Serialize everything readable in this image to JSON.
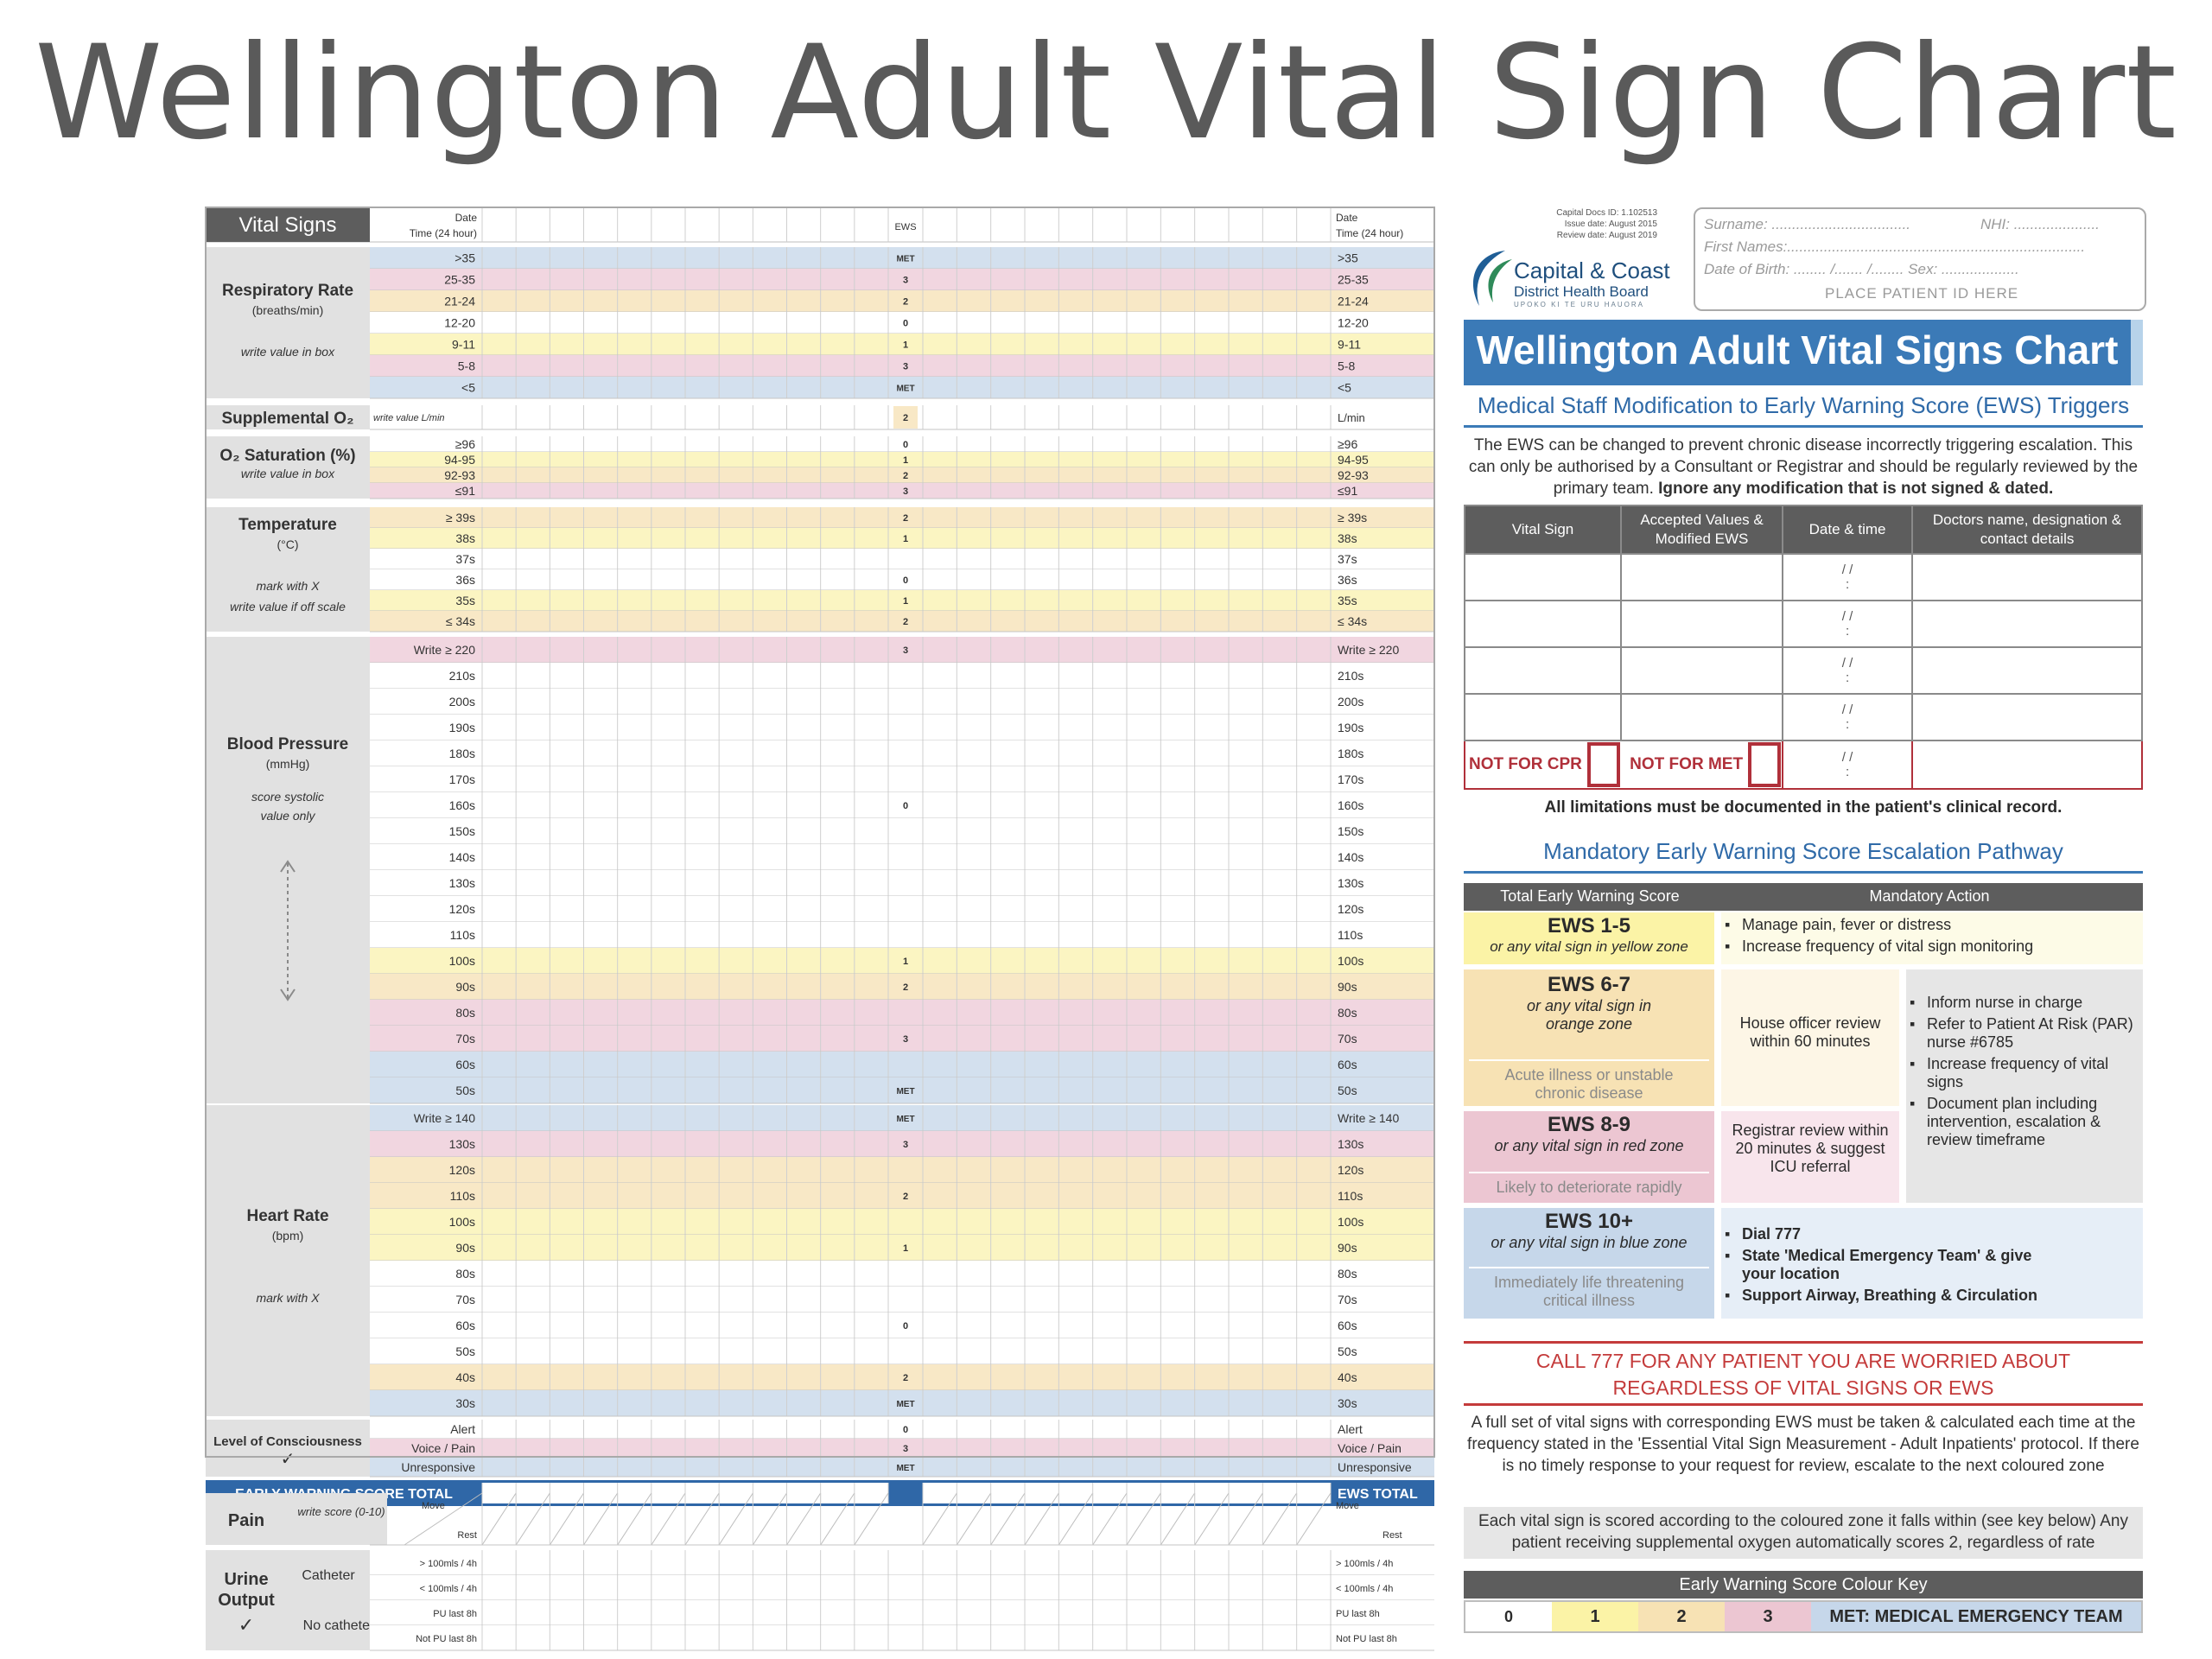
{
  "title": "Wellington Adult Vital Sign Chart",
  "left_chart": {
    "header": {
      "vital_signs": "Vital Signs",
      "date": "Date",
      "time": "Time (24 hour)",
      "ews": "EWS"
    },
    "sections": {
      "respiratory": {
        "name": "Respiratory Rate",
        "unit": "(breaths/min)",
        "hint": "write value in box",
        "rows": [
          {
            "label": ">35",
            "ews": "MET",
            "zone": "met"
          },
          {
            "label": "25-35",
            "ews": "3",
            "zone": "red"
          },
          {
            "label": "21-24",
            "ews": "2",
            "zone": "orange"
          },
          {
            "label": "12-20",
            "ews": "0",
            "zone": "none"
          },
          {
            "label": "9-11",
            "ews": "1",
            "zone": "yellow"
          },
          {
            "label": "5-8",
            "ews": "3",
            "zone": "red"
          },
          {
            "label": "<5",
            "ews": "MET",
            "zone": "met"
          }
        ]
      },
      "supplemental_o2": {
        "name": "Supplemental O₂",
        "hint": "write value L/min",
        "right_label": "L/min",
        "ews": "2"
      },
      "o2_sat": {
        "name": "O₂ Saturation (%)",
        "hint": "write value in box",
        "rows": [
          {
            "label": "≥96",
            "ews": "0",
            "zone": "none"
          },
          {
            "label": "94-95",
            "ews": "1",
            "zone": "yellow"
          },
          {
            "label": "92-93",
            "ews": "2",
            "zone": "orange"
          },
          {
            "label": "≤91",
            "ews": "3",
            "zone": "red"
          }
        ]
      },
      "temperature": {
        "name": "Temperature",
        "unit": "(°C)",
        "hint": "mark with X",
        "hint2": "write value if off scale",
        "rows": [
          {
            "label": "≥ 39s",
            "ews": "2",
            "zone": "orange"
          },
          {
            "label": "38s",
            "ews": "1",
            "zone": "yellow"
          },
          {
            "label": "37s",
            "ews": "",
            "zone": "none"
          },
          {
            "label": "36s",
            "ews": "0",
            "zone": "none"
          },
          {
            "label": "35s",
            "ews": "1",
            "zone": "yellow"
          },
          {
            "label": "≤ 34s",
            "ews": "2",
            "zone": "orange"
          }
        ]
      },
      "blood_pressure": {
        "name": "Blood Pressure",
        "unit": "(mmHg)",
        "hint": "score systolic",
        "hint2": "value only",
        "rows": [
          {
            "label": "Write  ≥ 220",
            "ews": "3",
            "zone": "red"
          },
          {
            "label": "210s",
            "ews": "",
            "zone": "none"
          },
          {
            "label": "200s",
            "ews": "",
            "zone": "none"
          },
          {
            "label": "190s",
            "ews": "",
            "zone": "none"
          },
          {
            "label": "180s",
            "ews": "",
            "zone": "none"
          },
          {
            "label": "170s",
            "ews": "",
            "zone": "none"
          },
          {
            "label": "160s",
            "ews": "0",
            "zone": "none"
          },
          {
            "label": "150s",
            "ews": "",
            "zone": "none"
          },
          {
            "label": "140s",
            "ews": "",
            "zone": "none"
          },
          {
            "label": "130s",
            "ews": "",
            "zone": "none"
          },
          {
            "label": "120s",
            "ews": "",
            "zone": "none"
          },
          {
            "label": "110s",
            "ews": "",
            "zone": "none"
          },
          {
            "label": "100s",
            "ews": "1",
            "zone": "yellow"
          },
          {
            "label": "90s",
            "ews": "2",
            "zone": "orange"
          },
          {
            "label": "80s",
            "ews": "",
            "zone": "red"
          },
          {
            "label": "70s",
            "ews": "3",
            "zone": "red"
          },
          {
            "label": "60s",
            "ews": "",
            "zone": "met"
          },
          {
            "label": "50s",
            "ews": "MET",
            "zone": "met"
          }
        ]
      },
      "heart_rate": {
        "name": "Heart Rate",
        "unit": "(bpm)",
        "hint": "mark with X",
        "rows": [
          {
            "label": "Write  ≥ 140",
            "ews": "MET",
            "zone": "met"
          },
          {
            "label": "130s",
            "ews": "3",
            "zone": "red"
          },
          {
            "label": "120s",
            "ews": "",
            "zone": "orange"
          },
          {
            "label": "110s",
            "ews": "2",
            "zone": "orange"
          },
          {
            "label": "100s",
            "ews": "",
            "zone": "yellow"
          },
          {
            "label": "90s",
            "ews": "1",
            "zone": "yellow"
          },
          {
            "label": "80s",
            "ews": "",
            "zone": "none"
          },
          {
            "label": "70s",
            "ews": "",
            "zone": "none"
          },
          {
            "label": "60s",
            "ews": "0",
            "zone": "none"
          },
          {
            "label": "50s",
            "ews": "",
            "zone": "none"
          },
          {
            "label": "40s",
            "ews": "2",
            "zone": "orange"
          },
          {
            "label": "30s",
            "ews": "MET",
            "zone": "met"
          }
        ]
      },
      "consciousness": {
        "name": "Level of Consciousness",
        "check": "✓",
        "rows": [
          {
            "label": "Alert",
            "ews": "0",
            "zone": "none"
          },
          {
            "label": "Voice / Pain",
            "ews": "3",
            "zone": "red"
          },
          {
            "label": "Unresponsive",
            "ews": "MET",
            "zone": "met"
          }
        ]
      }
    },
    "ews_total_label": "EARLY WARNING SCORE TOTAL",
    "ews_total_right": "EWS TOTAL",
    "pain": {
      "name": "Pain",
      "hint": "write score (0-10)",
      "move": "Move",
      "rest": "Rest"
    },
    "urine": {
      "name": "Urine Output",
      "check": "✓",
      "catheter": "Catheter",
      "no_catheter": "No catheter",
      "rows": [
        "> 100mls / 4h",
        "< 100mls / 4h",
        "PU last 8h",
        "Not PU last 8h"
      ]
    }
  },
  "right_panel": {
    "doc_meta": [
      "Capital Docs ID: 1.102513",
      "Issue date: August 2015",
      "Review date: August 2019"
    ],
    "logo": {
      "name": "Capital & Coast",
      "sub": "District Health Board",
      "tagline": "UPOKO KI TE URU HAUORA"
    },
    "patient_id": {
      "surname": "Surname: ..................................",
      "nhi": "NHI: .....................",
      "first_names": "First Names:.........................................................................",
      "dob": "Date of Birth: ........ /....... /........  Sex: ...................",
      "place": "PLACE PATIENT ID HERE"
    },
    "banner": "Wellington Adult Vital Signs Chart",
    "mod_title": "Medical Staff Modification to Early Warning Score (EWS) Triggers",
    "mod_text": "The EWS can be changed to prevent chronic disease incorrectly triggering escalation. This can only be authorised by a Consultant or Registrar and should be regularly reviewed by the primary team.",
    "mod_text_bold": "Ignore any modification that is not signed & dated.",
    "mod_headers": [
      "Vital Sign",
      "Accepted Values & Modified EWS",
      "Date & time",
      "Doctors name, designation & contact details"
    ],
    "date_placeholder": "/      /",
    "time_placeholder": ":",
    "not_for_cpr": "NOT FOR CPR",
    "not_for_met": "NOT FOR MET",
    "limitations": "All limitations must be documented in the patient's clinical record.",
    "pathway_title": "Mandatory Early Warning Score Escalation Pathway",
    "esc_headers": [
      "Total Early Warning Score",
      "Mandatory Action"
    ],
    "ews15": {
      "title": "EWS 1-5",
      "sub": "or any vital sign in yellow zone",
      "actions": [
        "Manage pain, fever or distress",
        "Increase frequency of vital sign monitoring"
      ]
    },
    "ews67": {
      "title": "EWS 6-7",
      "sub": "or any vital sign in orange zone",
      "note": "Acute illness or unstable chronic disease",
      "review": "House officer review within 60 minutes"
    },
    "ews89": {
      "title": "EWS 8-9",
      "sub": "or any vital sign in red zone",
      "note": "Likely to deteriorate rapidly",
      "review": "Registrar review within 20 minutes & suggest ICU referral"
    },
    "shared_actions": [
      "Inform nurse in charge",
      "Refer to Patient At Risk (PAR) nurse #6785",
      "Increase frequency of vital signs",
      "Document plan including intervention, escalation & review timeframe"
    ],
    "ews10": {
      "title": "EWS 10+",
      "sub": "or any vital sign in blue zone",
      "note": "Immediately life threatening critical illness",
      "actions": [
        "Dial 777",
        "State 'Medical Emergency Team' & give your location",
        "Support Airway, Breathing & Circulation"
      ]
    },
    "call_777": "CALL 777 FOR ANY PATIENT YOU ARE WORRIED ABOUT REGARDLESS OF VITAL SIGNS OR EWS",
    "full_set_text": "A full set of vital signs with corresponding EWS must be taken & calculated each time at the frequency stated in the 'Essential Vital Sign Measurement - Adult Inpatients' protocol. If there is no timely response to your request for review, escalate to the next coloured zone",
    "scoring_text": "Each vital sign is scored according to the coloured zone it falls within (see key below) Any patient receiving supplemental oxygen automatically scores 2, regardless of rate",
    "key_title": "Early Warning Score Colour Key",
    "key": [
      {
        "label": "0",
        "color": "#ffffff"
      },
      {
        "label": "1",
        "color": "#fbf3a6"
      },
      {
        "label": "2",
        "color": "#f7e2b4"
      },
      {
        "label": "3",
        "color": "#ecc6d2"
      },
      {
        "label": "MET: MEDICAL EMERGENCY TEAM",
        "color": "#c6d7ea"
      }
    ]
  },
  "colors": {
    "yellow": "#fbf5c2",
    "orange": "#f8e8c6",
    "red": "#f1d6e0",
    "met": "#d3e0ee",
    "grey": "#e1e1e1",
    "dark": "#5d5d5d",
    "blue": "#2f67a7"
  }
}
